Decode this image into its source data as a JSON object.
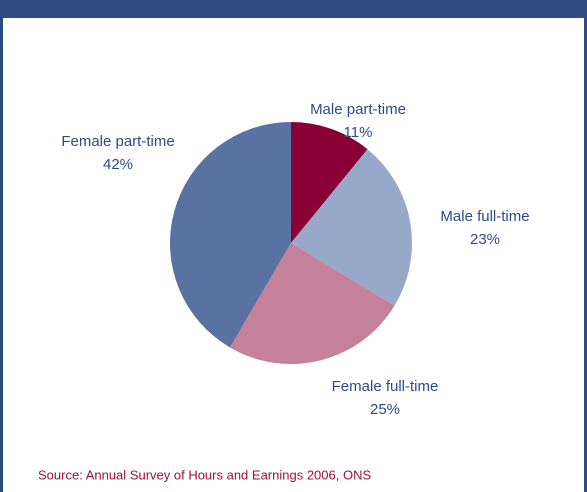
{
  "chart_data": {
    "type": "pie",
    "categories": [
      "Male part-time",
      "Male full-time",
      "Female full-time",
      "Female part-time"
    ],
    "values": [
      11,
      23,
      25,
      42
    ],
    "value_labels": [
      "11%",
      "23%",
      "25%",
      "42%"
    ],
    "colors": [
      "#8a0034",
      "#97a8c8",
      "#c48199",
      "#5a72a2"
    ],
    "source": "Source: Annual Survey of Hours and Earnings 2006, ONS"
  }
}
